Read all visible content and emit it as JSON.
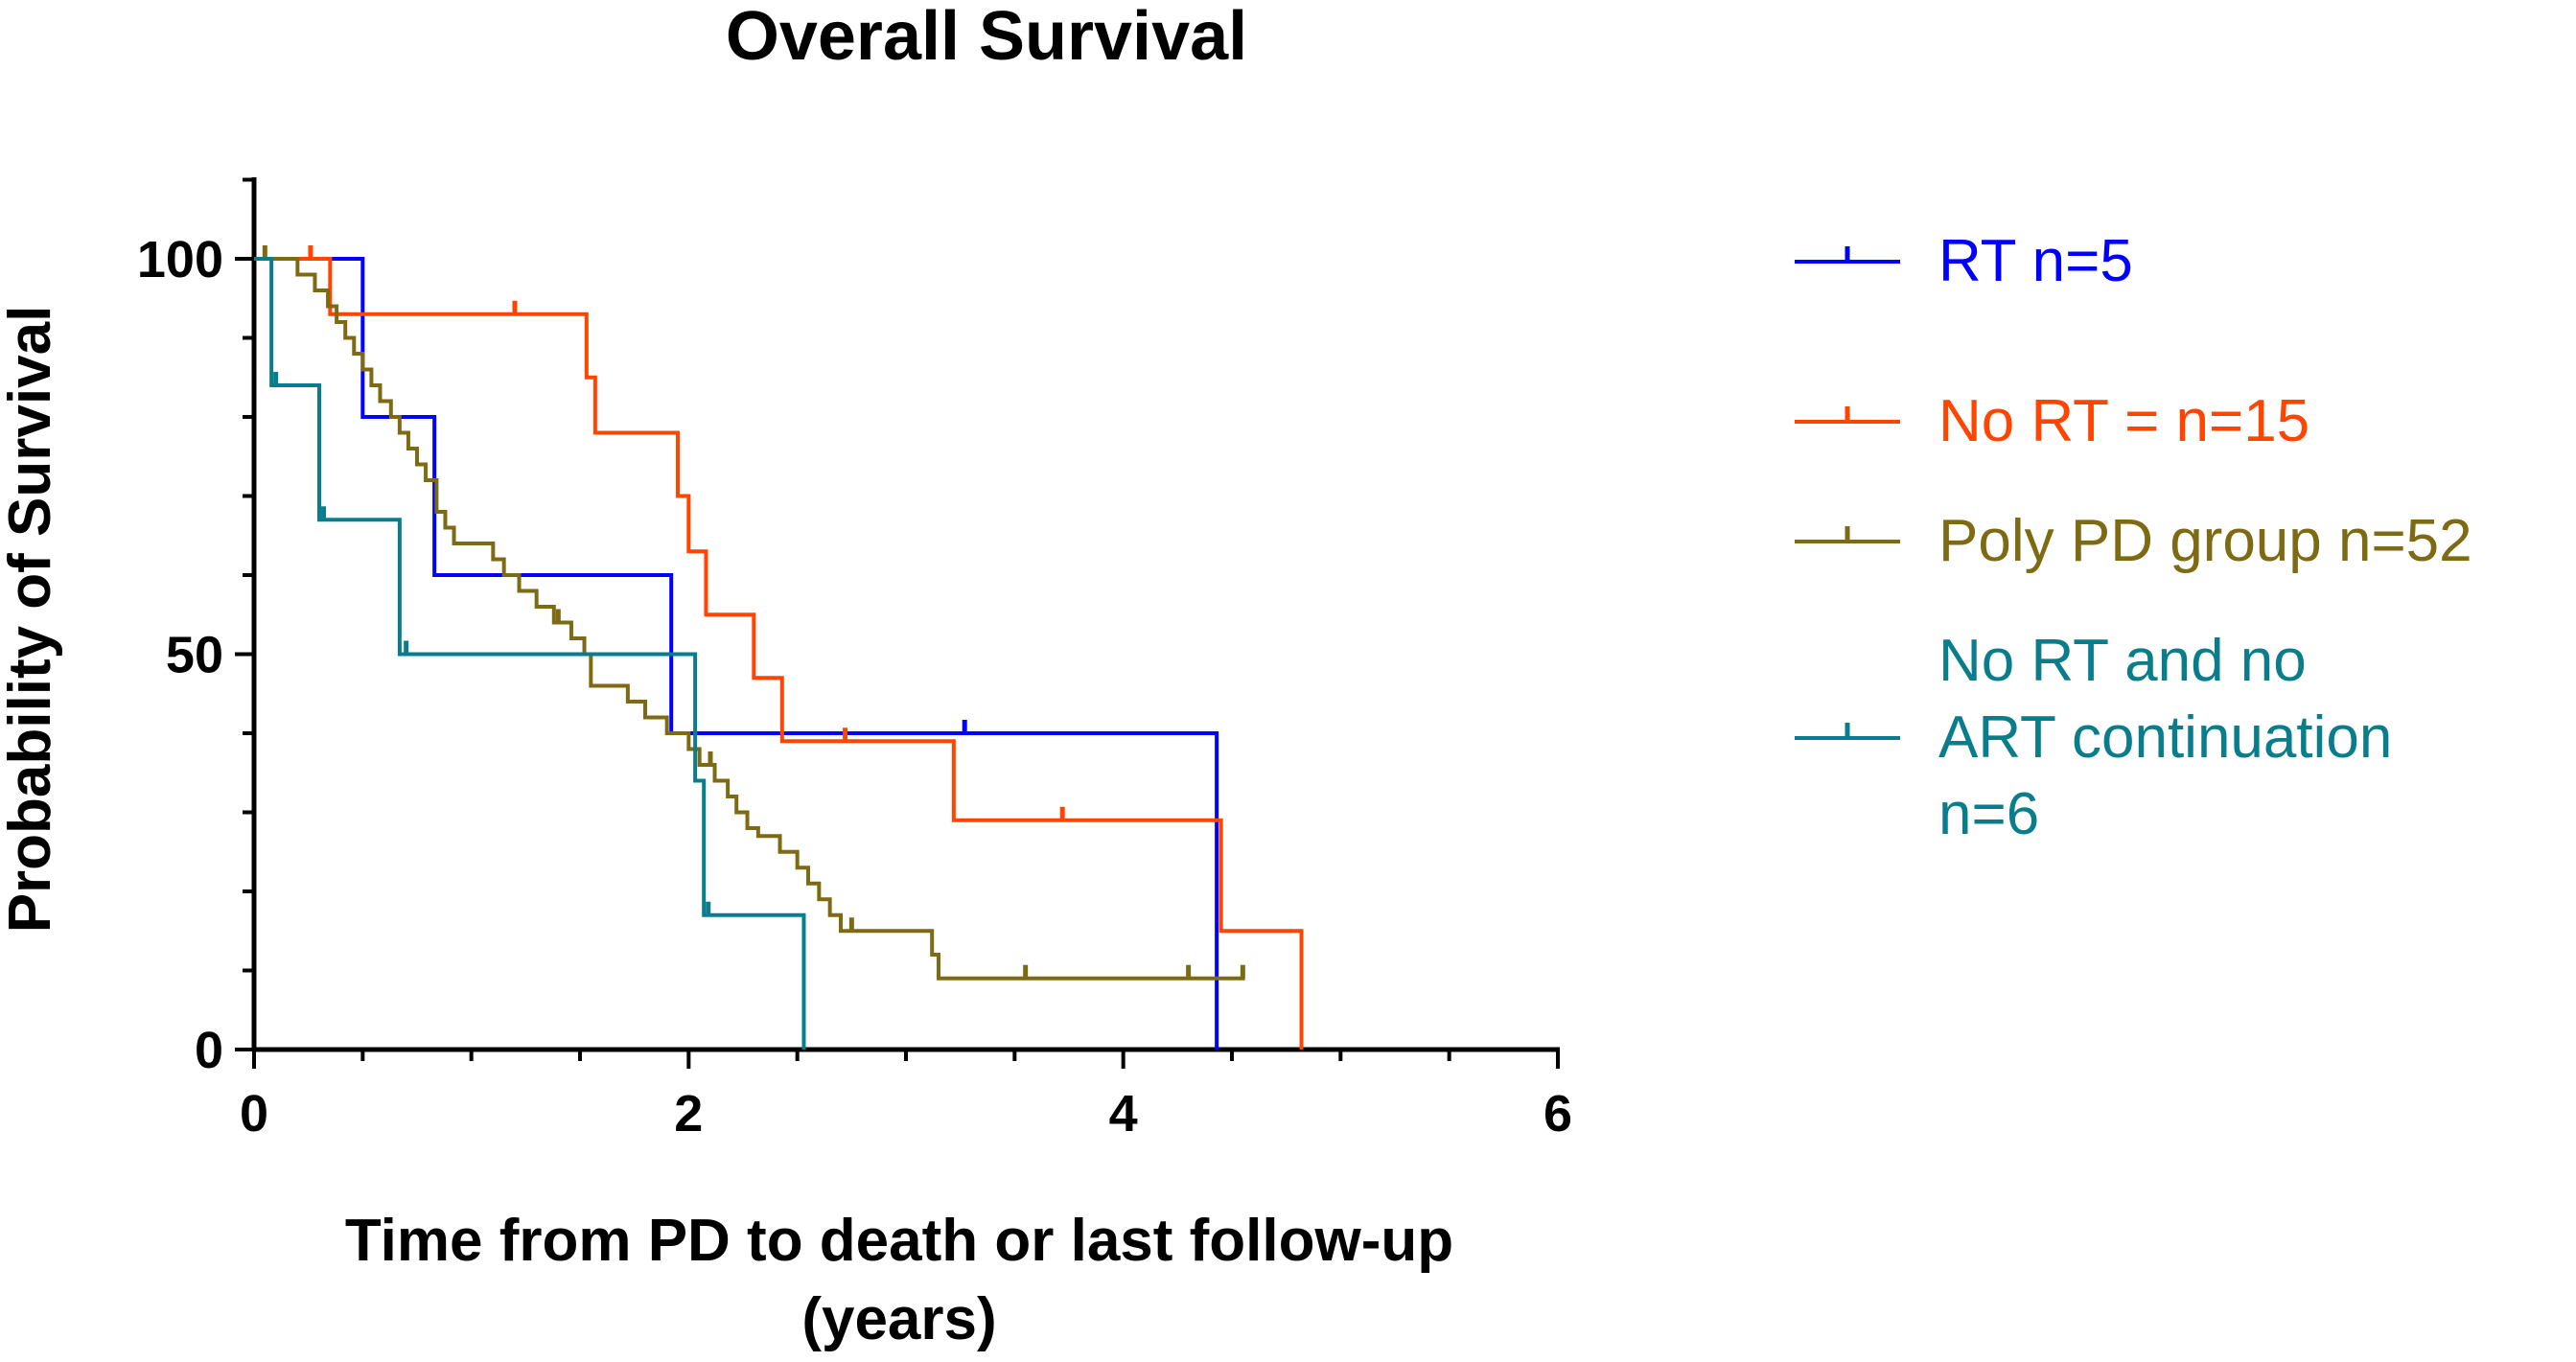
{
  "chart_data": {
    "type": "line",
    "subtype": "kaplan-meier-step",
    "title": "Overall  Survival",
    "xlabel_line1": "Time from PD to death or last follow-up",
    "xlabel_line2": "(years)",
    "ylabel": "Probability of Survival",
    "xlim": [
      0,
      6
    ],
    "ylim": [
      0,
      110
    ],
    "xticks": [
      0,
      2,
      4,
      6
    ],
    "yticks": [
      0,
      50,
      100
    ],
    "xtick_labels": [
      "0",
      "2",
      "4",
      "6"
    ],
    "ytick_labels": [
      "0",
      "50",
      "100"
    ],
    "grid": false,
    "legend_position": "right",
    "series": [
      {
        "name": "RT n=5",
        "legend_lines": [
          "RT n=5"
        ],
        "color": "#0000ff",
        "steps": [
          [
            0,
            100
          ],
          [
            0.5,
            80
          ],
          [
            0.83,
            60
          ],
          [
            1.92,
            40
          ],
          [
            4.43,
            0
          ]
        ],
        "end": 4.43,
        "censored": [
          [
            3.27,
            40
          ]
        ]
      },
      {
        "name": "No RT = n=15",
        "legend_lines": [
          "No RT = n=15"
        ],
        "color": "#ff4500",
        "steps": [
          [
            0,
            100
          ],
          [
            0.35,
            93
          ],
          [
            1.53,
            85
          ],
          [
            1.57,
            78
          ],
          [
            1.95,
            70
          ],
          [
            2.0,
            63
          ],
          [
            2.08,
            55
          ],
          [
            2.3,
            47
          ],
          [
            2.43,
            39
          ],
          [
            3.22,
            29
          ],
          [
            4.45,
            15
          ],
          [
            4.82,
            0
          ]
        ],
        "end": 4.82,
        "censored": [
          [
            0.26,
            100
          ],
          [
            1.2,
            93
          ],
          [
            2.72,
            39
          ],
          [
            3.72,
            29
          ]
        ]
      },
      {
        "name": "Poly PD group n=52",
        "legend_lines": [
          "Poly PD group n=52"
        ],
        "color": "#7f6a14",
        "steps": [
          [
            0,
            100
          ],
          [
            0.2,
            98
          ],
          [
            0.28,
            96
          ],
          [
            0.34,
            94
          ],
          [
            0.38,
            92
          ],
          [
            0.42,
            90
          ],
          [
            0.46,
            88
          ],
          [
            0.5,
            86
          ],
          [
            0.54,
            84
          ],
          [
            0.58,
            82
          ],
          [
            0.63,
            80
          ],
          [
            0.67,
            78
          ],
          [
            0.71,
            76
          ],
          [
            0.75,
            74
          ],
          [
            0.79,
            72
          ],
          [
            0.84,
            68
          ],
          [
            0.88,
            66
          ],
          [
            0.92,
            64
          ],
          [
            1.1,
            62
          ],
          [
            1.15,
            60
          ],
          [
            1.22,
            58
          ],
          [
            1.3,
            56
          ],
          [
            1.38,
            54
          ],
          [
            1.46,
            52
          ],
          [
            1.52,
            50
          ],
          [
            1.55,
            46
          ],
          [
            1.72,
            44
          ],
          [
            1.8,
            42
          ],
          [
            1.9,
            40
          ],
          [
            2.0,
            38
          ],
          [
            2.05,
            36
          ],
          [
            2.12,
            34
          ],
          [
            2.18,
            32
          ],
          [
            2.22,
            30
          ],
          [
            2.27,
            28
          ],
          [
            2.32,
            27
          ],
          [
            2.42,
            25
          ],
          [
            2.5,
            23
          ],
          [
            2.55,
            21
          ],
          [
            2.6,
            19
          ],
          [
            2.65,
            17
          ],
          [
            2.7,
            15
          ],
          [
            3.12,
            12
          ],
          [
            3.15,
            9
          ]
        ],
        "end": 4.56,
        "censored": [
          [
            0.05,
            100
          ],
          [
            1.4,
            54
          ],
          [
            2.1,
            36
          ],
          [
            2.75,
            15
          ],
          [
            3.55,
            9
          ],
          [
            4.3,
            9
          ],
          [
            4.55,
            9
          ]
        ]
      },
      {
        "name": "No RT and no ART continuation n=6",
        "legend_lines": [
          "No RT and no",
          "ART continuation",
          "n=6"
        ],
        "color": "#0a7d8c",
        "steps": [
          [
            0,
            100
          ],
          [
            0.08,
            84
          ],
          [
            0.3,
            67
          ],
          [
            0.67,
            50
          ],
          [
            2.03,
            34
          ],
          [
            2.07,
            17
          ],
          [
            2.53,
            0
          ]
        ],
        "end": 2.53,
        "censored": [
          [
            0.1,
            84
          ],
          [
            0.32,
            67
          ],
          [
            0.7,
            50
          ],
          [
            2.09,
            17
          ]
        ]
      }
    ]
  }
}
